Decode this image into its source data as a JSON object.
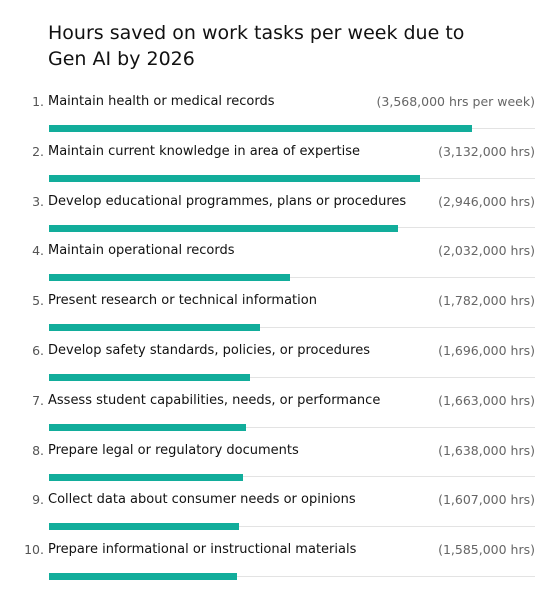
{
  "chart_data": {
    "type": "bar",
    "title": "Hours saved on work tasks per week due to Gen AI by 2026",
    "xlabel": "",
    "ylabel": "",
    "xlim": [
      0,
      4100000
    ],
    "bar_color": "#12ad9b",
    "items": [
      {
        "rank": "1.",
        "label": "Maintain health or medical records",
        "value": 3568000,
        "value_label": "(3,568,000 hrs per week)"
      },
      {
        "rank": "2.",
        "label": "Maintain current knowledge in area of expertise",
        "value": 3132000,
        "value_label": "(3,132,000 hrs)"
      },
      {
        "rank": "3.",
        "label": "Develop educational programmes, plans or procedures",
        "value": 2946000,
        "value_label": "(2,946,000 hrs)"
      },
      {
        "rank": "4.",
        "label": "Maintain operational records",
        "value": 2032000,
        "value_label": "(2,032,000 hrs)"
      },
      {
        "rank": "5.",
        "label": "Present research or technical information",
        "value": 1782000,
        "value_label": "(1,782,000 hrs)"
      },
      {
        "rank": "6.",
        "label": "Develop safety standards, policies, or procedures",
        "value": 1696000,
        "value_label": "(1,696,000 hrs)"
      },
      {
        "rank": "7.",
        "label": "Assess student capabilities, needs, or performance",
        "value": 1663000,
        "value_label": "(1,663,000 hrs)"
      },
      {
        "rank": "8.",
        "label": "Prepare legal or regulatory documents",
        "value": 1638000,
        "value_label": "(1,638,000 hrs)"
      },
      {
        "rank": "9.",
        "label": "Collect data about consumer needs or opinions",
        "value": 1607000,
        "value_label": "(1,607,000 hrs)"
      },
      {
        "rank": "10.",
        "label": "Prepare informational or instructional materials",
        "value": 1585000,
        "value_label": "(1,585,000 hrs)"
      }
    ]
  }
}
